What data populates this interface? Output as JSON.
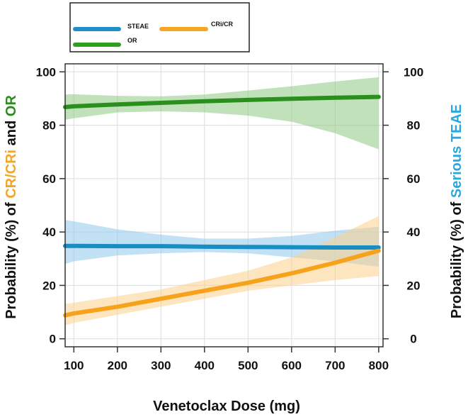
{
  "chart_data": {
    "type": "line",
    "title": "",
    "xlabel": "Venetoclax Dose (mg)",
    "ylabel_left": {
      "parts": [
        {
          "text": "Probability (%) of ",
          "color": "#111111"
        },
        {
          "text": "CR/CRi",
          "color": "#f5a623"
        },
        {
          "text": " and ",
          "color": "#111111"
        },
        {
          "text": "OR",
          "color": "#2e8b1e"
        }
      ]
    },
    "ylabel_right": {
      "parts": [
        {
          "text": "Probability (%) of ",
          "color": "#111111"
        },
        {
          "text": "Serious TEAE",
          "color": "#29a8e0"
        }
      ]
    },
    "xlim": [
      80,
      810
    ],
    "ylim": [
      -3,
      103
    ],
    "x_ticks": [
      "100",
      "200",
      "300",
      "400",
      "500",
      "600",
      "700",
      "800"
    ],
    "x_tick_values": [
      100,
      200,
      300,
      400,
      500,
      600,
      700,
      800
    ],
    "y_ticks": [
      "0",
      "20",
      "40",
      "60",
      "80",
      "100"
    ],
    "y_tick_values": [
      0,
      20,
      40,
      60,
      80,
      100
    ],
    "grid": true,
    "legend": {
      "position": "top-left",
      "entries": [
        {
          "name": "STEAE",
          "color": "#1e8fc7"
        },
        {
          "name": "CRi/CR",
          "color": "#f5a623"
        },
        {
          "name": "OR",
          "color": "#2e9e1f"
        }
      ]
    },
    "x": [
      80,
      100,
      200,
      300,
      400,
      500,
      600,
      700,
      800
    ],
    "series": [
      {
        "name": "OR",
        "color": "#2a8f1c",
        "band_color": "#8ec983",
        "values": [
          86.8,
          87.1,
          87.8,
          88.4,
          89.0,
          89.5,
          89.9,
          90.3,
          90.6
        ],
        "lower": [
          82.0,
          82.6,
          84.8,
          85.2,
          84.8,
          83.6,
          81.3,
          77.0,
          71.0
        ],
        "upper": [
          91.5,
          91.6,
          91.0,
          90.8,
          91.5,
          93.0,
          94.6,
          96.4,
          98.0
        ]
      },
      {
        "name": "STEAE",
        "color": "#1a8cc4",
        "band_color": "#8fc9ec",
        "values": [
          34.8,
          34.8,
          34.7,
          34.7,
          34.5,
          34.4,
          34.3,
          34.2,
          34.2
        ],
        "lower": [
          28.0,
          29.0,
          31.2,
          32.0,
          32.5,
          32.0,
          30.5,
          29.0,
          27.0
        ],
        "upper": [
          44.5,
          44.0,
          41.0,
          39.0,
          37.5,
          37.5,
          38.5,
          40.5,
          42.0
        ]
      },
      {
        "name": "CRi/CR",
        "color": "#f7a21b",
        "band_color": "#fbd08a",
        "values": [
          8.8,
          9.5,
          12.0,
          15.0,
          18.0,
          21.0,
          24.5,
          28.5,
          33.0
        ],
        "lower": [
          5.0,
          6.0,
          9.0,
          12.0,
          15.0,
          18.0,
          20.0,
          22.0,
          23.5
        ],
        "upper": [
          13.0,
          13.5,
          16.0,
          18.5,
          22.0,
          25.5,
          30.5,
          38.0,
          46.0
        ]
      }
    ]
  }
}
